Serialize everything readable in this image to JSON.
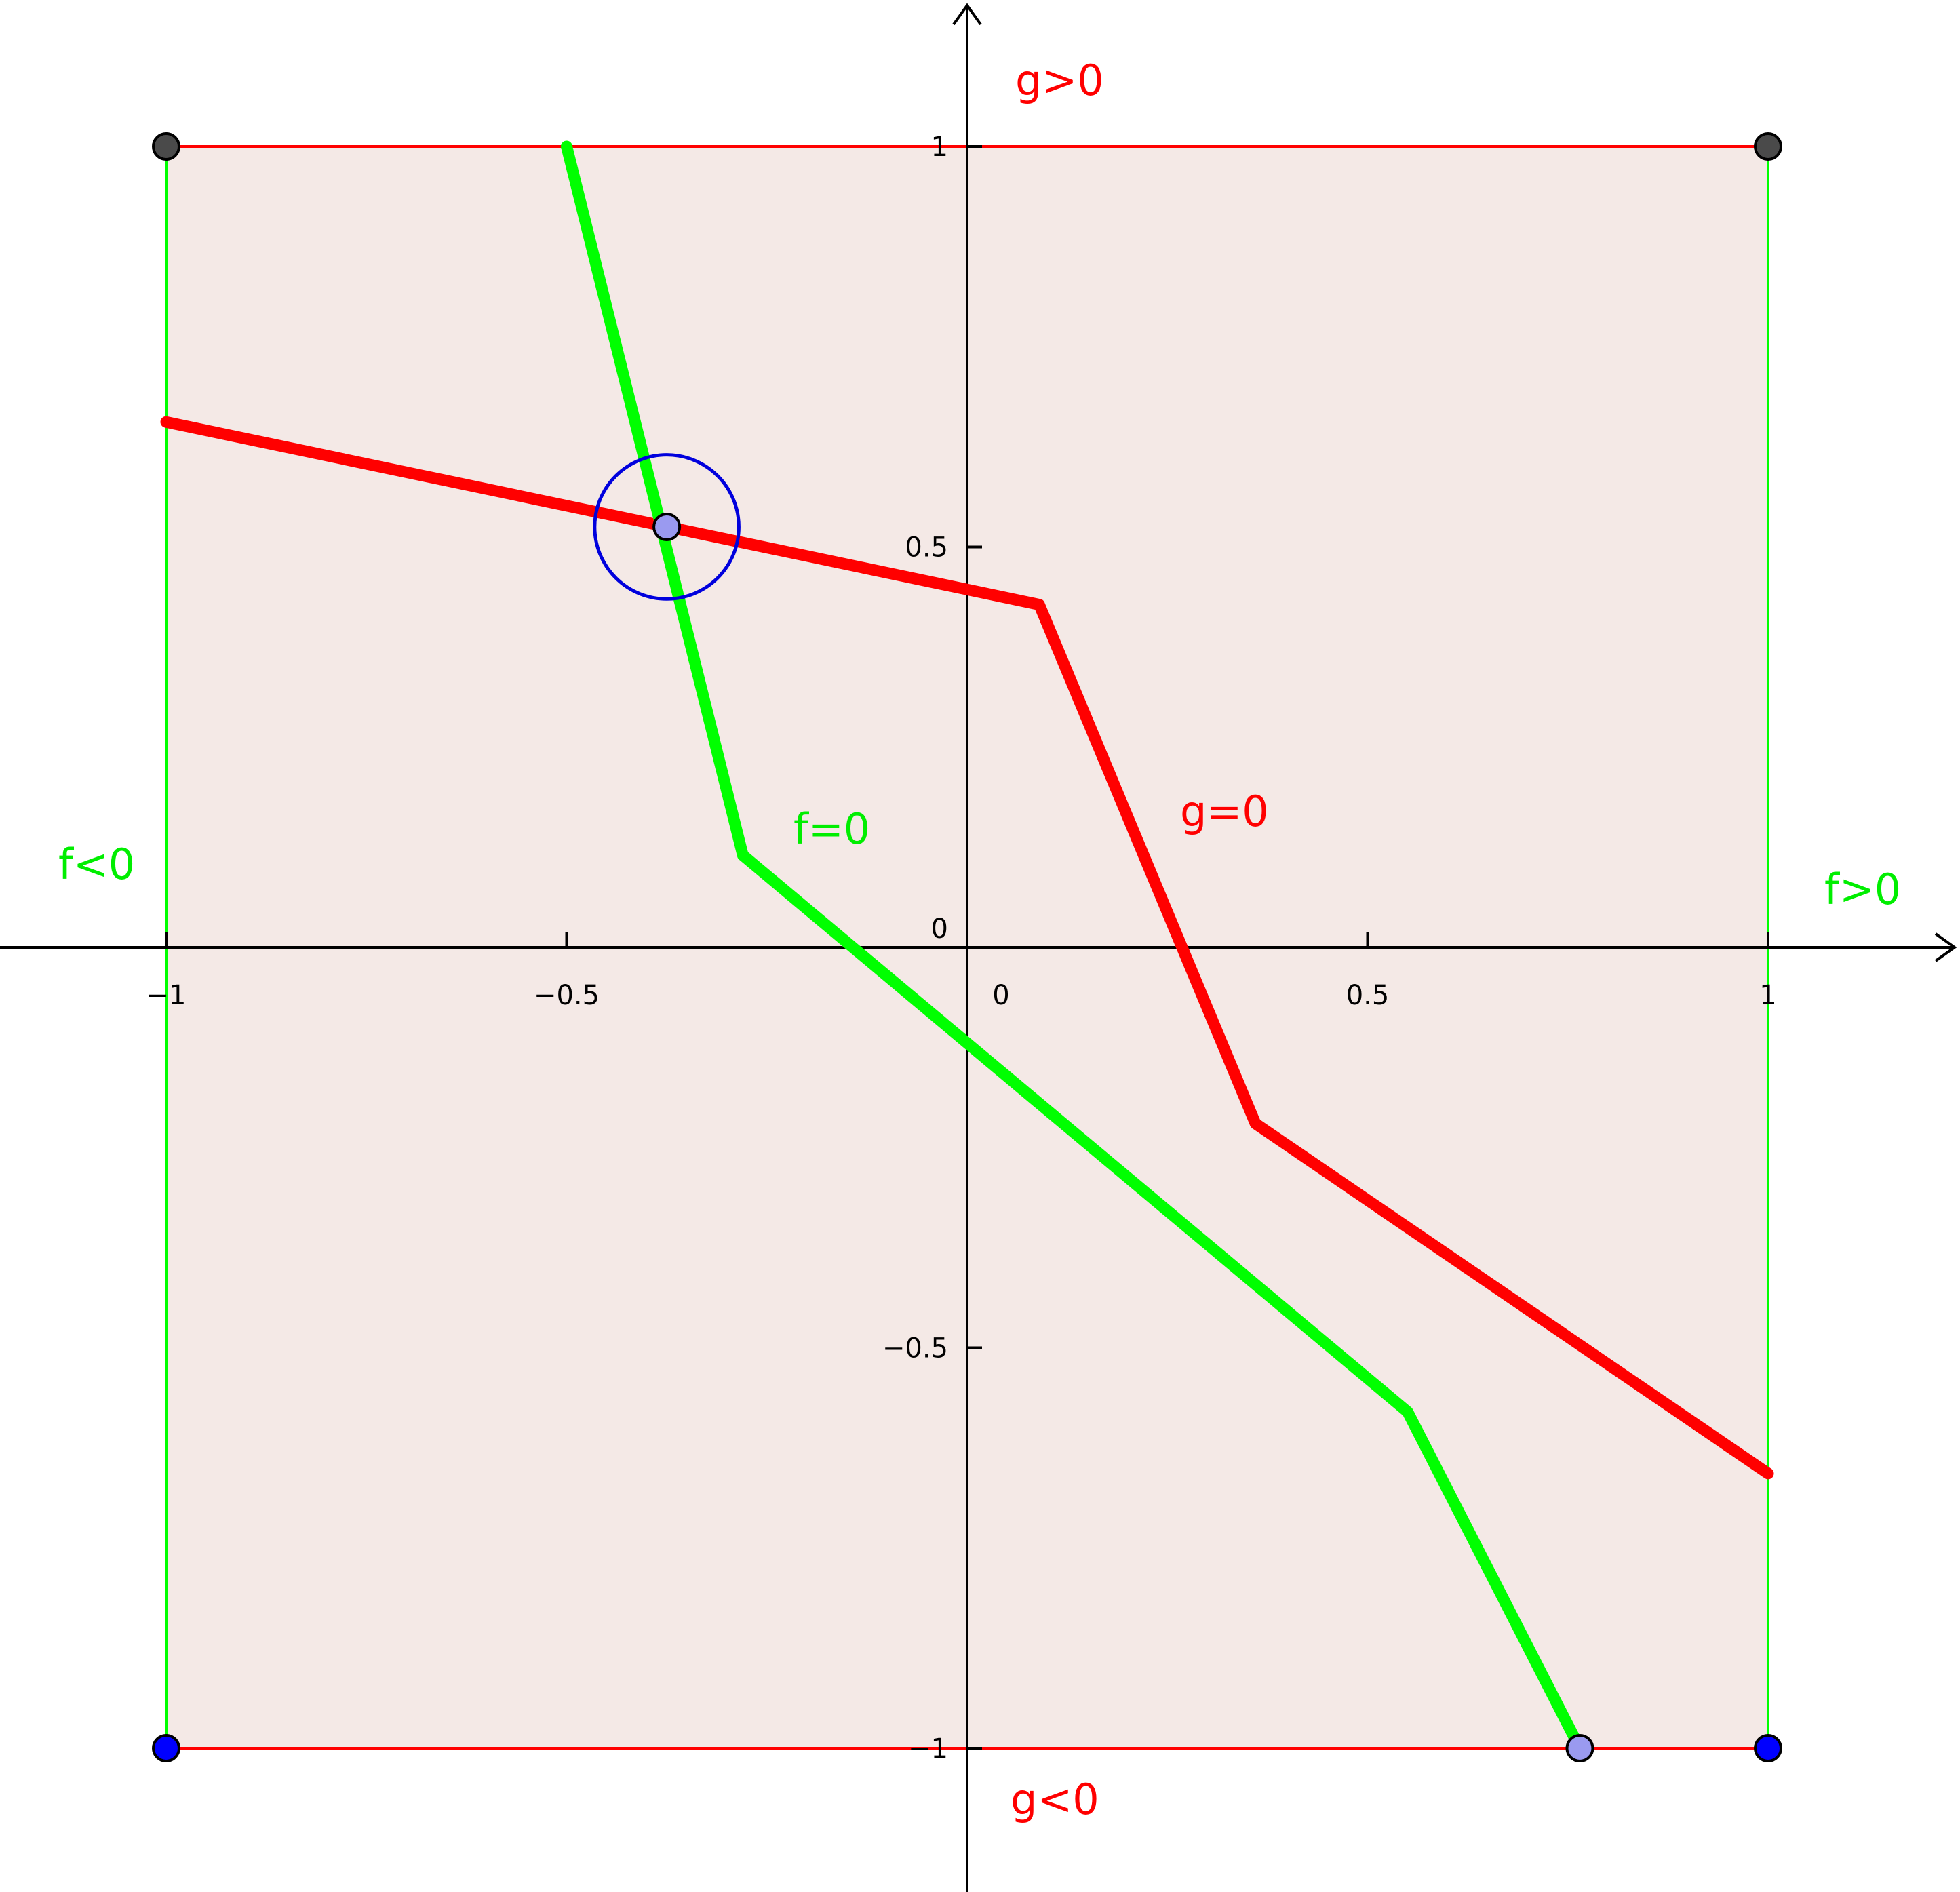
{
  "colors": {
    "square_fill": "#f4e9e6",
    "red": "#ff0000",
    "green": "#00ff00",
    "axis": "#000000",
    "corner_top": "#4a4a4a",
    "corner_bottom": "#0000ff",
    "marker": "#9a9af0",
    "circle": "#0000dd"
  },
  "x_ticks": [
    {
      "value": -1,
      "label": "−1"
    },
    {
      "value": -0.5,
      "label": "−0.5"
    },
    {
      "value": 0,
      "label": "0"
    },
    {
      "value": 0.5,
      "label": "0.5"
    },
    {
      "value": 1,
      "label": "1"
    }
  ],
  "y_ticks": [
    {
      "value": 1,
      "label": "1"
    },
    {
      "value": 0.5,
      "label": "0.5"
    },
    {
      "value": 0,
      "label": "0"
    },
    {
      "value": -0.5,
      "label": "−0.5"
    },
    {
      "value": -1,
      "label": "−1"
    }
  ],
  "labels": {
    "g_pos": "g>0",
    "g_neg": "g<0",
    "g_zero": "g=0",
    "f_pos": "f>0",
    "f_neg": "f<0",
    "f_zero": "f=0"
  },
  "square": {
    "xmin": -1,
    "xmax": 1,
    "ymin": -1,
    "ymax": 1
  },
  "curves": {
    "g_zero": [
      [
        -1,
        0.656
      ],
      [
        0.09,
        0.428
      ],
      [
        0.36,
        -0.22
      ],
      [
        1,
        -0.657
      ]
    ],
    "f_zero": [
      [
        -0.5,
        1
      ],
      [
        -0.28,
        0.115
      ],
      [
        0.55,
        -0.58
      ],
      [
        0.765,
        -1
      ]
    ]
  },
  "points": {
    "intersection": [
      -0.375,
      0.525
    ],
    "f_bottom_end": [
      0.765,
      -1
    ],
    "corner_top_left": [
      -1,
      1
    ],
    "corner_top_right": [
      1,
      1
    ],
    "corner_bottom_left": [
      -1,
      -1
    ],
    "corner_bottom_right": [
      1,
      -1
    ]
  },
  "circle": {
    "center": [
      -0.375,
      0.525
    ],
    "radius": 0.09
  }
}
